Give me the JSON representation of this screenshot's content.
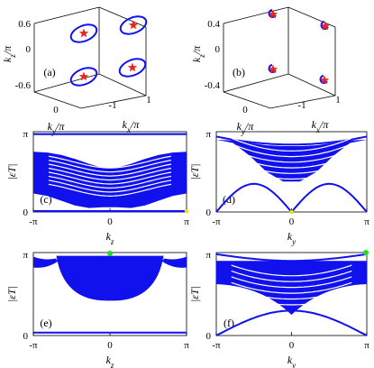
{
  "chart_data": [
    {
      "panel": "(a)",
      "type": "scatter",
      "zlabel": "k_z/π",
      "ylabel": "k_y/π",
      "xlabel": "k_x/π",
      "z_ticks": [
        "0.6",
        "0",
        "-0.6"
      ],
      "y_ticks": [
        "0"
      ],
      "x_ticks": [
        "-1",
        "1"
      ],
      "series": [
        {
          "name": "Weyl points",
          "marker": "star",
          "color": "#e8251c",
          "points": [
            [
              -0.5,
              -0.5,
              0.55
            ],
            [
              0.5,
              0.5,
              0.55
            ],
            [
              -0.5,
              -0.5,
              -0.6
            ],
            [
              0.5,
              0.5,
              -0.6
            ]
          ]
        },
        {
          "name": "loops",
          "marker": "ellipse",
          "color": "#1a1adb",
          "count": 4
        }
      ]
    },
    {
      "panel": "(b)",
      "type": "scatter",
      "zlabel": "k_z/π",
      "ylabel": "k_y/π",
      "xlabel": "k_x/π",
      "z_ticks": [
        "0.4",
        "0",
        "-0.4"
      ],
      "y_ticks": [
        "0"
      ],
      "x_ticks": [
        "-1",
        "1"
      ],
      "series": [
        {
          "name": "Weyl points",
          "marker": "star",
          "color": "#e8251c",
          "points": [
            [
              -0.5,
              -0.5,
              0.35
            ],
            [
              0.5,
              0.5,
              0.3
            ],
            [
              -0.5,
              -0.5,
              -0.25
            ],
            [
              0.5,
              0.5,
              -0.3
            ]
          ]
        }
      ]
    },
    {
      "panel": "(c)",
      "type": "area",
      "xlabel": "k_z",
      "ylabel": "|εT|",
      "x_ticks": [
        "-π",
        "0",
        "π"
      ],
      "y_ticks": [
        "0",
        "π"
      ],
      "xlim": [
        -1,
        1
      ],
      "ylim": [
        0,
        1
      ],
      "color": "#1111ee",
      "flat_bands": [
        0.98,
        0.01
      ],
      "bulk_top": [
        0.75,
        0.74,
        0.71,
        0.66,
        0.6,
        0.55,
        0.55,
        0.6,
        0.66,
        0.71,
        0.74,
        0.75
      ],
      "bulk_bottom": [
        0.23,
        0.2,
        0.14,
        0.08,
        0.05,
        0.06,
        0.06,
        0.05,
        0.08,
        0.14,
        0.2,
        0.23
      ],
      "markers": [
        {
          "x": 1,
          "y": 0.01,
          "color": "#f0e000"
        }
      ]
    },
    {
      "panel": "(d)",
      "type": "area",
      "xlabel": "k_y",
      "ylabel": "|εT|",
      "x_ticks": [
        "-π",
        "0",
        "π"
      ],
      "y_ticks": [
        "0",
        "π"
      ],
      "xlim": [
        -1,
        1
      ],
      "ylim": [
        0,
        1
      ],
      "color": "#1111ee",
      "bulk_top": [
        0.9,
        0.89,
        0.86,
        0.83,
        0.82,
        0.82,
        0.83,
        0.86,
        0.89,
        0.9
      ],
      "bulk_bottom": [
        0.9,
        0.86,
        0.7,
        0.5,
        0.38,
        0.38,
        0.5,
        0.7,
        0.86,
        0.9
      ],
      "markers": [
        {
          "x": 0,
          "y": 0.0,
          "color": "#f0e000"
        }
      ]
    },
    {
      "panel": "(e)",
      "type": "area",
      "xlabel": "k_z",
      "ylabel": "|εT|",
      "x_ticks": [
        "-π",
        "0",
        "π"
      ],
      "y_ticks": [
        "0",
        "π"
      ],
      "xlim": [
        -1,
        1
      ],
      "ylim": [
        0,
        1
      ],
      "color": "#1111ee",
      "flat_bands": [
        0.03,
        0.0
      ],
      "markers": [
        {
          "x": 0,
          "y": 1.0,
          "color": "#22dd22"
        }
      ]
    },
    {
      "panel": "(f)",
      "type": "area",
      "xlabel": "k_y",
      "ylabel": "|εT|",
      "x_ticks": [
        "-π",
        "0",
        "π"
      ],
      "y_ticks": [
        "0",
        "π"
      ],
      "xlim": [
        -1,
        1
      ],
      "ylim": [
        0,
        1
      ],
      "color": "#1111ee",
      "markers": [
        {
          "x": 1,
          "y": 1.0,
          "color": "#22dd22"
        }
      ]
    }
  ]
}
